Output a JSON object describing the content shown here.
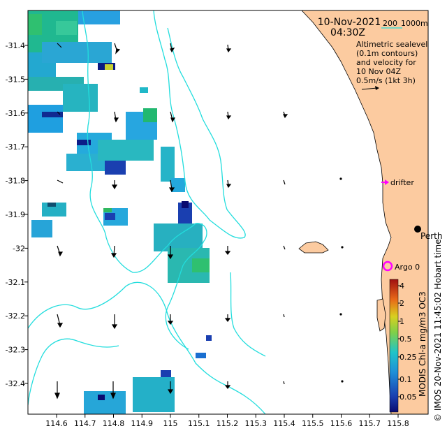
{
  "map": {
    "date": "10-Nov-2021",
    "time": "04:30Z",
    "depth_scale": {
      "label_200": "200",
      "label_1000": "1000m"
    },
    "description": [
      "Altimetric sealevel",
      "(0.1m contours)",
      "and velocity for",
      "10 Nov 04Z",
      "0.5m/s (1kt 3h)"
    ],
    "x_ticks": [
      "114.6",
      "114.7",
      "114.8",
      "114.9",
      "115",
      "115.1",
      "115.2",
      "115.3",
      "115.4",
      "115.5",
      "115.6",
      "115.7",
      "115.8"
    ],
    "y_ticks": [
      "-31.4",
      "-31.5",
      "-31.6",
      "-31.7",
      "-31.8",
      "-31.9",
      "-32",
      "-32.1",
      "-32.2",
      "-32.3",
      "-32.4"
    ],
    "labels": {
      "drifter": "drifter",
      "city": "Perth",
      "argo": "Argo 0"
    },
    "footer_credit": "© IMOS 20-Nov-2021 11:45:02 Hobart time",
    "colorbar": {
      "label": "MODIS Chl-a mg/m3 OC3",
      "ticks": [
        "4",
        "2",
        "1",
        "0.5",
        "0.25",
        "0.1",
        "0.05"
      ]
    },
    "colors": {
      "land": "#fccba0",
      "contour": "#22dddd",
      "drifter": "#ff00ff",
      "argo": "#ff00ff"
    }
  }
}
